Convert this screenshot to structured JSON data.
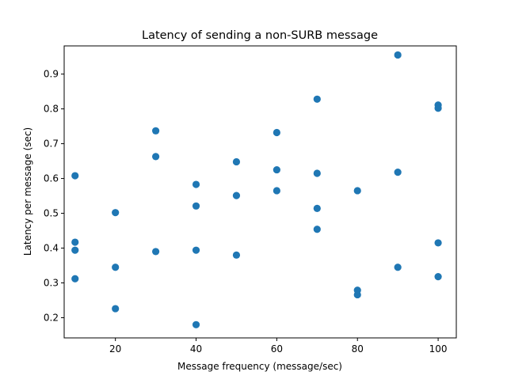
{
  "chart_data": {
    "type": "scatter",
    "title": "Latency of sending a non-SURB message",
    "xlabel": "Message frequency (message/sec)",
    "ylabel": "Latency per message (sec)",
    "xlim": [
      7.3,
      104.5
    ],
    "ylim": [
      0.142,
      0.981
    ],
    "xticks": [
      20,
      40,
      60,
      80,
      100
    ],
    "xtick_labels": [
      "20",
      "40",
      "60",
      "80",
      "100"
    ],
    "yticks": [
      0.2,
      0.3,
      0.4,
      0.5,
      0.6,
      0.7,
      0.8,
      0.9
    ],
    "ytick_labels": [
      "0.2",
      "0.3",
      "0.4",
      "0.5",
      "0.6",
      "0.7",
      "0.8",
      "0.9"
    ],
    "grid": false,
    "marker_color": "#1f77b4",
    "series": [
      {
        "points": [
          [
            10,
            0.608
          ],
          [
            10,
            0.417
          ],
          [
            10,
            0.394
          ],
          [
            10,
            0.312
          ],
          [
            20,
            0.502
          ],
          [
            20,
            0.345
          ],
          [
            20,
            0.226
          ],
          [
            30,
            0.737
          ],
          [
            30,
            0.663
          ],
          [
            30,
            0.39
          ],
          [
            40,
            0.583
          ],
          [
            40,
            0.521
          ],
          [
            40,
            0.394
          ],
          [
            40,
            0.18
          ],
          [
            50,
            0.648
          ],
          [
            50,
            0.551
          ],
          [
            50,
            0.38
          ],
          [
            60,
            0.732
          ],
          [
            60,
            0.625
          ],
          [
            60,
            0.565
          ],
          [
            70,
            0.828
          ],
          [
            70,
            0.615
          ],
          [
            70,
            0.514
          ],
          [
            70,
            0.454
          ],
          [
            80,
            0.565
          ],
          [
            80,
            0.279
          ],
          [
            80,
            0.266
          ],
          [
            90,
            0.955
          ],
          [
            90,
            0.618
          ],
          [
            90,
            0.345
          ],
          [
            100,
            0.811
          ],
          [
            100,
            0.802
          ],
          [
            100,
            0.415
          ],
          [
            100,
            0.318
          ]
        ]
      }
    ]
  }
}
